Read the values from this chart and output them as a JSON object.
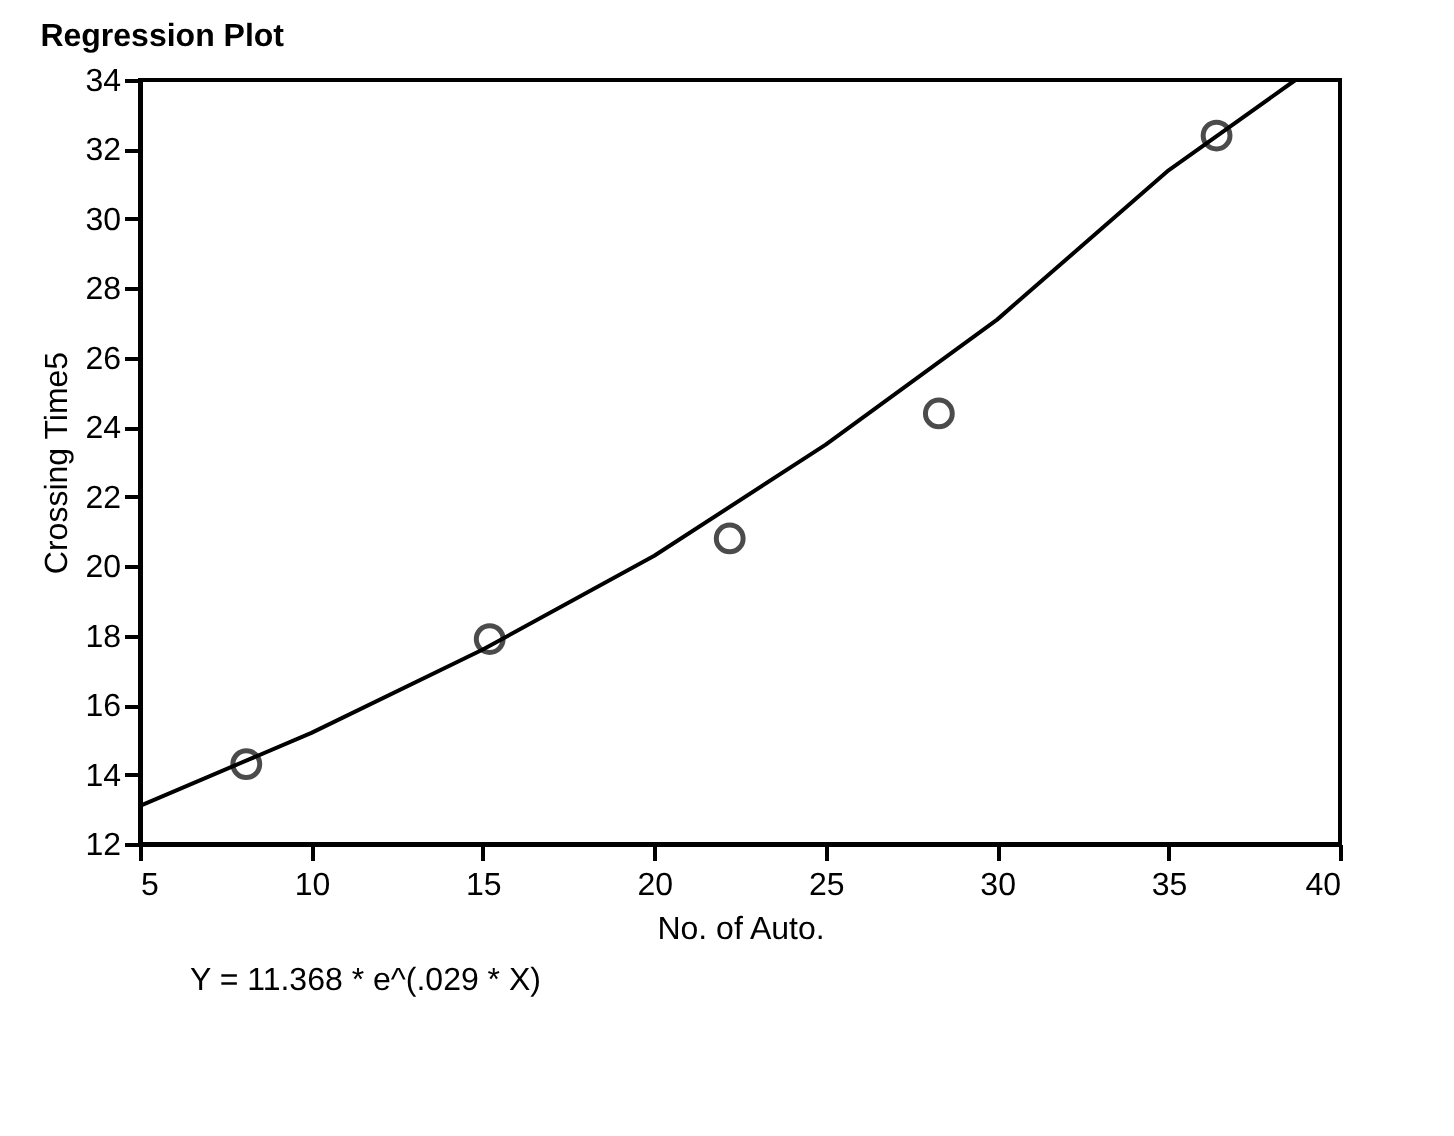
{
  "chart_data": {
    "type": "scatter",
    "title": "Regression Plot",
    "xlabel": "No. of Auto.",
    "ylabel": "Crossing Time5",
    "annotations": [
      "Y = 11.368 * e^(.029 * X)"
    ],
    "xlim": [
      5,
      40
    ],
    "xticks": [
      5,
      10,
      15,
      20,
      25,
      30,
      35,
      40
    ],
    "ylim": [
      12,
      34
    ],
    "yticks": [
      12,
      14,
      16,
      18,
      20,
      22,
      24,
      26,
      28,
      30,
      32,
      34
    ],
    "grid": false,
    "marker": "circle",
    "series": [
      {
        "type": "scatter",
        "color": "#000000",
        "x": [
          8.1,
          15.2,
          22.2,
          28.3,
          36.4
        ],
        "values": [
          14.3,
          17.9,
          20.8,
          24.4,
          32.4
        ]
      },
      {
        "type": "line",
        "marker": "none",
        "color": "#000000",
        "x": [
          5,
          10,
          15,
          20,
          25,
          30,
          35,
          38.7
        ],
        "values": [
          13.1,
          15.2,
          17.6,
          20.3,
          23.5,
          27.1,
          31.4,
          34
        ]
      }
    ]
  }
}
